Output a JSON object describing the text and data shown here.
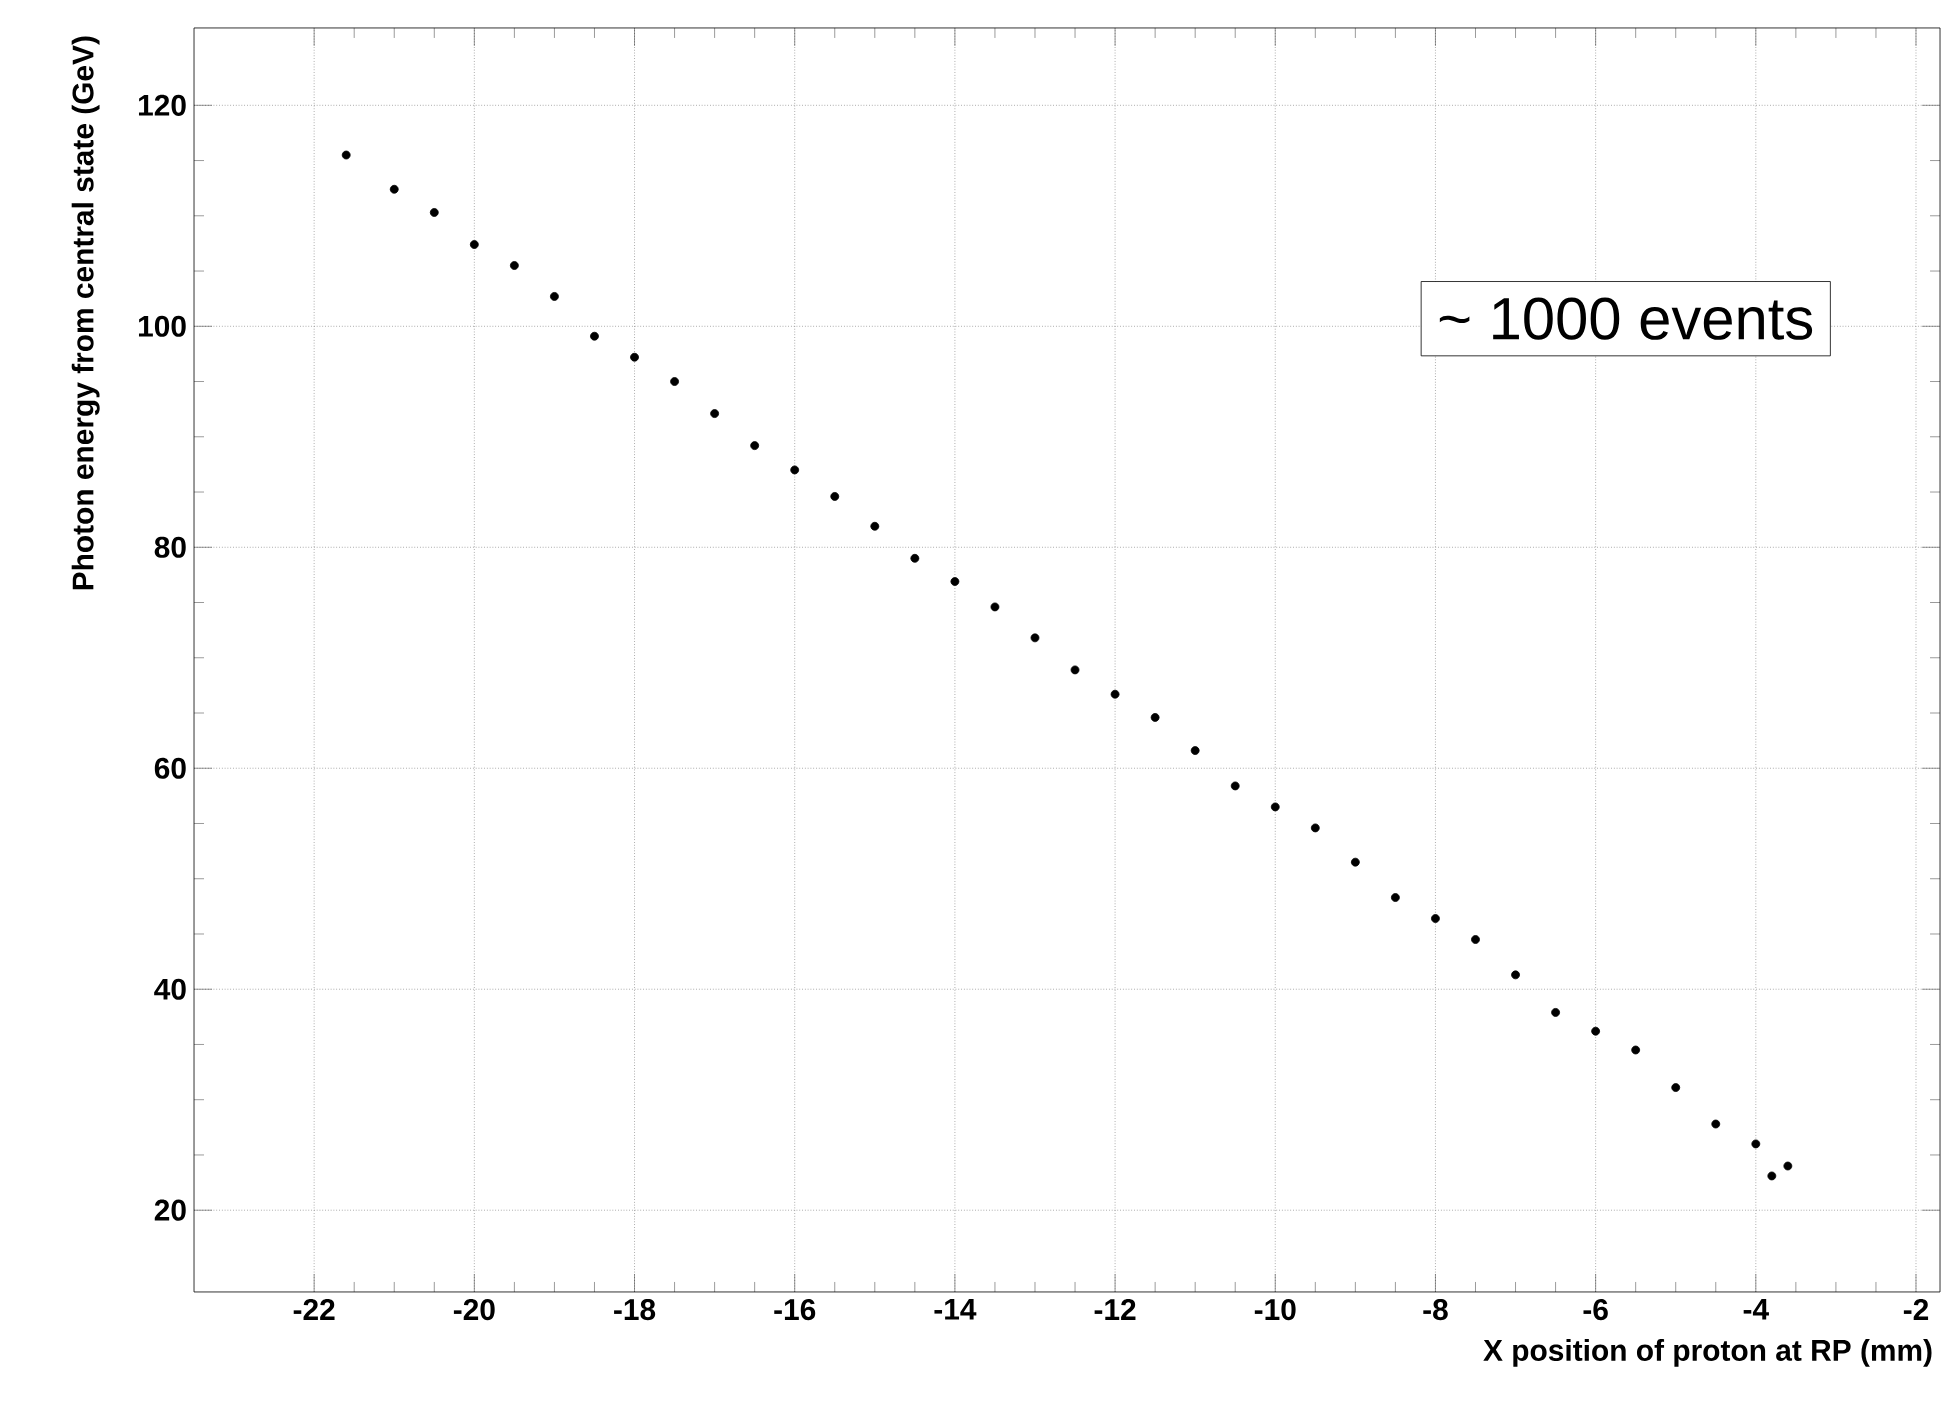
{
  "chart_data": {
    "type": "scatter",
    "xlabel": "X position of proton at RP (mm)",
    "ylabel": "Photon energy from central state (GeV)",
    "annotations": [
      "~ 1000 events"
    ],
    "xlim": [
      -23.5,
      -1.7
    ],
    "ylim": [
      12.6,
      127
    ],
    "xticks": [
      -22,
      -20,
      -18,
      -16,
      -14,
      -12,
      -10,
      -8,
      -6,
      -4,
      -2
    ],
    "yticks": [
      20,
      40,
      60,
      80,
      100,
      120
    ],
    "grid": true,
    "color": "#000000",
    "x": [
      -21.6,
      -21.0,
      -20.5,
      -20.0,
      -19.5,
      -19.0,
      -18.5,
      -18.0,
      -17.5,
      -17.0,
      -16.5,
      -16.0,
      -15.5,
      -15.0,
      -14.5,
      -14.0,
      -13.5,
      -13.0,
      -12.5,
      -12.0,
      -11.5,
      -11.0,
      -10.5,
      -10.0,
      -9.5,
      -9.0,
      -8.5,
      -8.0,
      -7.5,
      -7.0,
      -6.5,
      -6.0,
      -5.5,
      -5.0,
      -4.5,
      -4.0,
      -3.8,
      -3.6
    ],
    "values": [
      115.5,
      112.4,
      110.3,
      107.4,
      105.5,
      102.7,
      99.1,
      97.2,
      95.0,
      92.1,
      89.2,
      87.0,
      84.6,
      81.9,
      79.0,
      76.9,
      74.6,
      71.8,
      68.9,
      66.7,
      64.6,
      61.6,
      58.4,
      56.5,
      54.6,
      51.5,
      48.3,
      46.4,
      44.5,
      41.3,
      37.9,
      36.2,
      34.5,
      31.1,
      27.8,
      26.0,
      23.1,
      24.0
    ]
  }
}
